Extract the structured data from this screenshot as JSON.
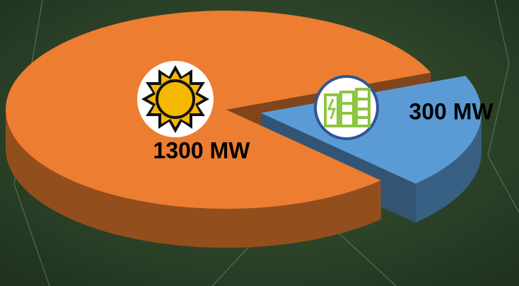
{
  "chart_data": {
    "type": "pie",
    "values": [
      1300,
      300
    ],
    "value_labels": [
      "1300 MW",
      "300 MW"
    ],
    "colors": [
      "#ED7D31",
      "#5B9BD5"
    ],
    "explode": [
      false,
      true
    ]
  }
}
